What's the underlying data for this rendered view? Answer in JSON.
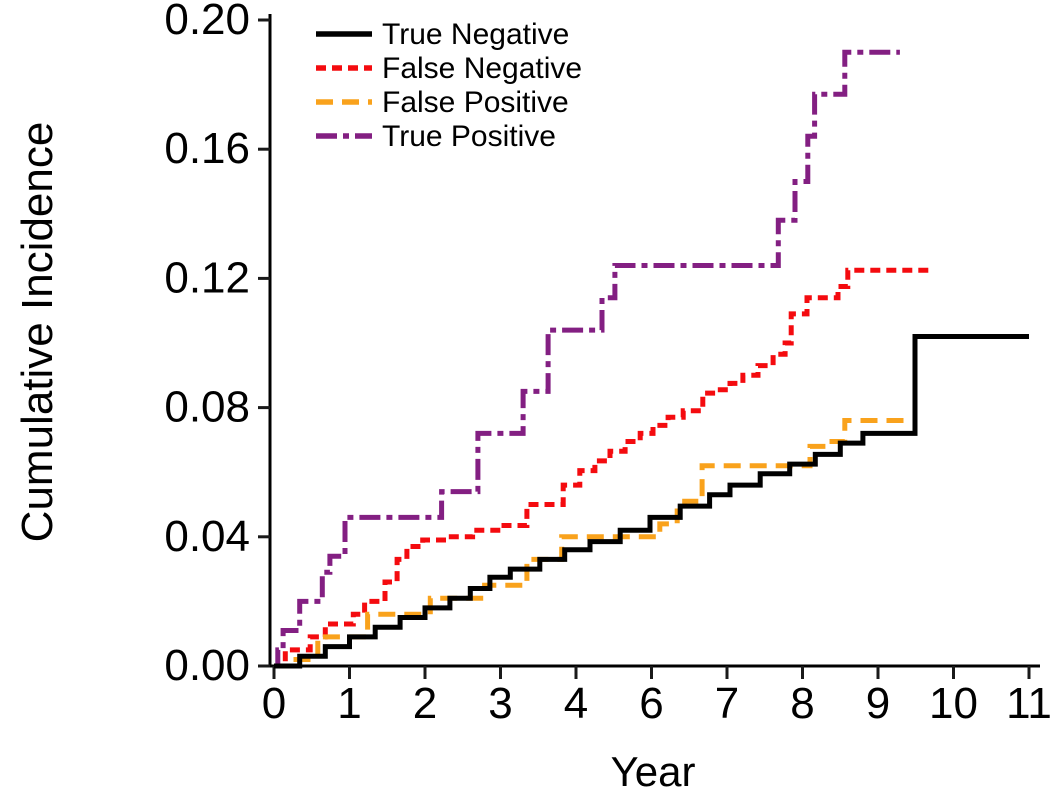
{
  "page": {
    "background": "#ffffff"
  },
  "chart_data": {
    "type": "line",
    "style": "step",
    "title": "",
    "xlabel": "Year",
    "ylabel": "Cumulative Incidence",
    "x_tick_labels": [
      "0",
      "1",
      "2",
      "3",
      "4",
      "6",
      "7",
      "8",
      "9",
      "10",
      "11"
    ],
    "y_tick_labels": [
      "0.00",
      "0.04",
      "0.08",
      "0.12",
      "0.16",
      "0.20"
    ],
    "y_tick_values": [
      0.0,
      0.04,
      0.08,
      0.12,
      0.16,
      0.2
    ],
    "ylim": [
      0,
      0.2
    ],
    "grid": false,
    "legend_position": "top-left-inside",
    "series": [
      {
        "name": "True Negative",
        "color": "#000000",
        "line_style": "solid",
        "points": [
          [
            0,
            0
          ],
          [
            0.34,
            0.003
          ],
          [
            0.68,
            0.006
          ],
          [
            1.0,
            0.009
          ],
          [
            1.34,
            0.012
          ],
          [
            1.67,
            0.015
          ],
          [
            2.0,
            0.018
          ],
          [
            2.33,
            0.021
          ],
          [
            2.6,
            0.024
          ],
          [
            2.86,
            0.0275
          ],
          [
            3.13,
            0.03
          ],
          [
            3.52,
            0.033
          ],
          [
            3.85,
            0.036
          ],
          [
            4.37,
            0.0385
          ],
          [
            5.17,
            0.042
          ],
          [
            5.96,
            0.046
          ],
          [
            6.38,
            0.0495
          ],
          [
            6.77,
            0.053
          ],
          [
            7.04,
            0.056
          ],
          [
            7.44,
            0.0595
          ],
          [
            7.83,
            0.0625
          ],
          [
            8.17,
            0.0655
          ],
          [
            8.5,
            0.069
          ],
          [
            8.8,
            0.072
          ],
          [
            9.49,
            0.102
          ],
          [
            11,
            0.102
          ]
        ]
      },
      {
        "name": "False Negative",
        "color": "#f40b0f",
        "line_style": "dashed",
        "points": [
          [
            0,
            0
          ],
          [
            0.15,
            0.005
          ],
          [
            0.48,
            0.009
          ],
          [
            0.68,
            0.013
          ],
          [
            1.05,
            0.016
          ],
          [
            1.2,
            0.02
          ],
          [
            1.47,
            0.026
          ],
          [
            1.63,
            0.033
          ],
          [
            1.76,
            0.037
          ],
          [
            1.97,
            0.039
          ],
          [
            2.3,
            0.04
          ],
          [
            2.63,
            0.042
          ],
          [
            3.0,
            0.0435
          ],
          [
            3.35,
            0.05
          ],
          [
            3.83,
            0.056
          ],
          [
            4.1,
            0.0605
          ],
          [
            4.5,
            0.0635
          ],
          [
            4.9,
            0.0665
          ],
          [
            5.3,
            0.0695
          ],
          [
            5.7,
            0.072
          ],
          [
            6.02,
            0.0745
          ],
          [
            6.22,
            0.077
          ],
          [
            6.42,
            0.079
          ],
          [
            6.68,
            0.0845
          ],
          [
            6.87,
            0.0855
          ],
          [
            7.04,
            0.0875
          ],
          [
            7.21,
            0.09
          ],
          [
            7.41,
            0.093
          ],
          [
            7.61,
            0.0965
          ],
          [
            7.77,
            0.1
          ],
          [
            7.85,
            0.109
          ],
          [
            8.06,
            0.114
          ],
          [
            8.47,
            0.1175
          ],
          [
            8.6,
            0.1225
          ],
          [
            9.73,
            0.1225
          ]
        ]
      },
      {
        "name": "False Positive",
        "color": "#f9a21c",
        "line_style": "long-dash",
        "points": [
          [
            0,
            0
          ],
          [
            0.2,
            0.002
          ],
          [
            0.58,
            0.009
          ],
          [
            1.24,
            0.016
          ],
          [
            2.07,
            0.021
          ],
          [
            2.79,
            0.025
          ],
          [
            3.35,
            0.033
          ],
          [
            3.81,
            0.04
          ],
          [
            6.11,
            0.044
          ],
          [
            6.34,
            0.048
          ],
          [
            6.44,
            0.051
          ],
          [
            6.67,
            0.062
          ],
          [
            8.1,
            0.068
          ],
          [
            8.27,
            0.0695
          ],
          [
            8.56,
            0.076
          ],
          [
            9.45,
            0.076
          ]
        ]
      },
      {
        "name": "True Positive",
        "color": "#831f82",
        "line_style": "dash-dot",
        "points": [
          [
            0,
            0
          ],
          [
            0.05,
            0.005
          ],
          [
            0.12,
            0.011
          ],
          [
            0.34,
            0.02
          ],
          [
            0.64,
            0.029
          ],
          [
            0.74,
            0.034
          ],
          [
            0.94,
            0.046
          ],
          [
            2.22,
            0.054
          ],
          [
            2.7,
            0.072
          ],
          [
            3.3,
            0.085
          ],
          [
            3.63,
            0.104
          ],
          [
            4.69,
            0.114
          ],
          [
            5.03,
            0.124
          ],
          [
            7.68,
            0.138
          ],
          [
            7.9,
            0.15
          ],
          [
            8.07,
            0.164
          ],
          [
            8.16,
            0.177
          ],
          [
            8.56,
            0.19
          ],
          [
            9.29,
            0.19
          ]
        ]
      }
    ]
  }
}
